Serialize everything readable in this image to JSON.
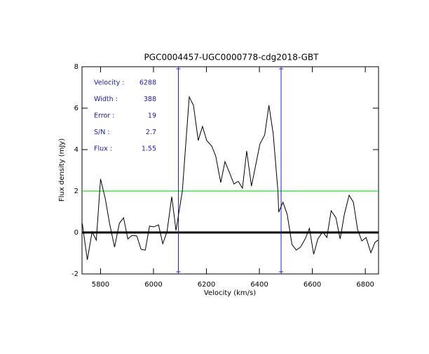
{
  "chart_data": {
    "type": "line",
    "title": "PGC0004457-UGC0000778-cdg2018-GBT",
    "xlabel": "Velocity (km/s)",
    "ylabel": "Flux density (mJy)",
    "xlim": [
      5730,
      6850
    ],
    "ylim": [
      -2,
      8
    ],
    "xticks": [
      5800,
      6000,
      6200,
      6400,
      6600,
      6800
    ],
    "yticks": [
      -2,
      0,
      2,
      4,
      6,
      8
    ],
    "annotations": [
      {
        "label": "Velocity :",
        "value": 6288
      },
      {
        "label": "Width :",
        "value": 388
      },
      {
        "label": "Error :",
        "value": 19
      },
      {
        "label": "S/N :",
        "value": 2.7
      },
      {
        "label": "Flux :",
        "value": 1.55
      }
    ],
    "hlines": [
      {
        "y": 2,
        "color": "#00cc00"
      },
      {
        "y": 0,
        "color": "#000000"
      }
    ],
    "vlines": [
      {
        "x": 6094,
        "color": "#2020d0"
      },
      {
        "x": 6482,
        "color": "#2020d0"
      }
    ],
    "series": [
      {
        "color": "#000000",
        "x": [
          5731,
          5750,
          5768,
          5784,
          5800,
          5818,
          5834,
          5853,
          5871,
          5887,
          5903,
          5919,
          5937,
          5953,
          5969,
          5985,
          6001,
          6019,
          6035,
          6051,
          6069,
          6085,
          6109,
          6119,
          6135,
          6151,
          6169,
          6185,
          6201,
          6220,
          6235,
          6254,
          6270,
          6286,
          6304,
          6320,
          6336,
          6352,
          6370,
          6386,
          6402,
          6420,
          6436,
          6452,
          6470,
          6473,
          6489,
          6505,
          6523,
          6539,
          6555,
          6573,
          6589,
          6605,
          6621,
          6639,
          6655,
          6671,
          6689,
          6705,
          6721,
          6739,
          6755,
          6771,
          6787,
          6803,
          6821,
          6837,
          6848
        ],
        "values": [
          0.44,
          -1.32,
          0.03,
          -0.37,
          2.58,
          1.63,
          0.44,
          -0.71,
          0.44,
          0.71,
          -0.31,
          -0.14,
          -0.17,
          -0.81,
          -0.85,
          0.31,
          0.27,
          0.37,
          -0.54,
          0.03,
          1.73,
          0.1,
          2.0,
          3.76,
          6.54,
          6.14,
          4.44,
          5.12,
          4.44,
          4.17,
          3.69,
          2.41,
          3.42,
          2.92,
          2.34,
          2.47,
          2.14,
          3.93,
          2.24,
          3.25,
          4.27,
          4.71,
          6.14,
          4.78,
          2.0,
          0.98,
          1.46,
          0.88,
          -0.58,
          -0.85,
          -0.71,
          -0.31,
          0.2,
          -1.05,
          -0.31,
          0.03,
          -0.24,
          1.05,
          0.71,
          -0.31,
          0.88,
          1.8,
          1.46,
          0.14,
          -0.41,
          -0.24,
          -0.98,
          -0.47,
          -0.37
        ]
      }
    ]
  }
}
